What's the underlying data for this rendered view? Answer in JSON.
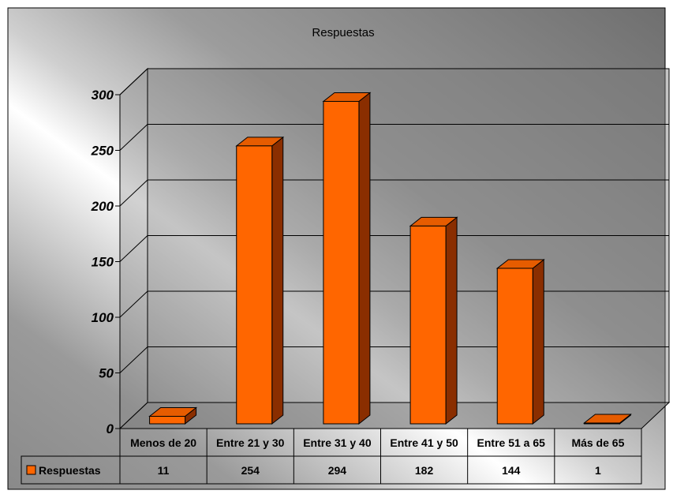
{
  "chart_data": {
    "type": "bar",
    "title": "Respuestas",
    "categories": [
      "Menos de 20",
      "Entre 21 y 30",
      "Entre 31 y 40",
      "Entre 41 y 50",
      "Entre 51 a 65",
      "Más de 65"
    ],
    "series": [
      {
        "name": "Respuestas",
        "values": [
          11,
          254,
          294,
          182,
          144,
          1
        ]
      }
    ],
    "ylim": [
      0,
      300
    ],
    "yticks": [
      0,
      50,
      100,
      150,
      200,
      250,
      300
    ],
    "grid": true,
    "legend": "data-table-left",
    "colors": {
      "bar_front": "#FF6600",
      "bar_side": "#8A2E00",
      "bar_top": "#E65C00",
      "wall": "#7F7F7F",
      "floor": "#808080"
    }
  }
}
